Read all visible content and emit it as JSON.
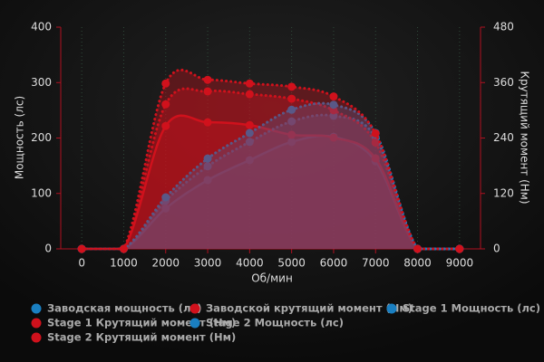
{
  "chart_data": {
    "type": "line",
    "x_label": "Об/мин",
    "y_label": "Мощность (лс)",
    "y2_label": "Крутящий момент (Нм)",
    "x": [
      0,
      1000,
      2000,
      3000,
      4000,
      5000,
      6000,
      7000,
      8000,
      9000
    ],
    "xlim": [
      -500,
      9500
    ],
    "xticks": [
      0,
      1000,
      2000,
      3000,
      4000,
      5000,
      6000,
      7000,
      8000,
      9000
    ],
    "ylim": [
      0,
      400
    ],
    "yticks": [
      0,
      100,
      200,
      300,
      400
    ],
    "y2lim": [
      0,
      480
    ],
    "y2ticks": [
      0,
      120,
      240,
      360,
      480
    ],
    "grid": true,
    "series": [
      {
        "name": "Заводская мощность (лс)",
        "color": "#1a7fc1",
        "line_style": "solid",
        "values": [
          0,
          0,
          73,
          124,
          160,
          193,
          202,
          158,
          0,
          0
        ]
      },
      {
        "name": "Заводской крутящий момент (Нм)",
        "color": "#d0111c",
        "line_style": "solid",
        "axis": "y2",
        "values": [
          0,
          0,
          266,
          274,
          268,
          247,
          241,
          196,
          0,
          0
        ]
      },
      {
        "name": "Stage 1 Мощность (лс)",
        "color": "#1a7fc1",
        "line_style": "dotted",
        "values": [
          0,
          0,
          87,
          149,
          193,
          230,
          240,
          201,
          0,
          0
        ]
      },
      {
        "name": "Stage 1 Крутящий момент (Нм)",
        "color": "#d0111c",
        "line_style": "dotted",
        "axis": "y2",
        "values": [
          0,
          0,
          313,
          341,
          335,
          325,
          300,
          230,
          0,
          0
        ]
      },
      {
        "name": "Stage 2 Мощность (лс)",
        "color": "#1a7fc1",
        "line_style": "dotted",
        "values": [
          0,
          0,
          93,
          163,
          209,
          251,
          260,
          209,
          0,
          0
        ]
      },
      {
        "name": "Stage 2 Крутящий момент (Нм)",
        "color": "#d0111c",
        "line_style": "dotted",
        "axis": "y2",
        "values": [
          0,
          0,
          358,
          366,
          358,
          351,
          330,
          250,
          0,
          0
        ]
      }
    ]
  }
}
